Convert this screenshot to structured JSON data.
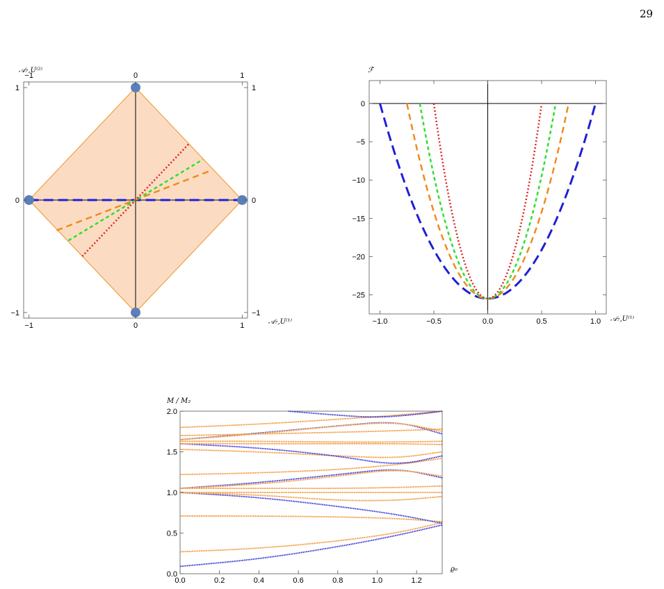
{
  "page": {
    "number": "29"
  },
  "colors": {
    "blue": "#1f1fd6",
    "orange": "#f08a1e",
    "green": "#2ce02c",
    "red": "#e02020",
    "region_fill": "#fbdcc2",
    "region_stroke": "#f0922c",
    "marker": "#5b7fb8"
  },
  "chart_data": [
    {
      "type": "scatter",
      "id": "top-left",
      "title": "",
      "xlabel": "𝒜₇,U⁽¹⁾",
      "ylabel": "𝒜₇,U⁽²⁾",
      "xlim": [
        -1.05,
        1.05
      ],
      "ylim": [
        -1.05,
        1.05
      ],
      "x_ticks": [
        "-1",
        "0",
        "1"
      ],
      "y_ticks": [
        "-1",
        "0",
        "1"
      ],
      "x_tick_values": [
        -1,
        0,
        1
      ],
      "y_tick_values": [
        -1,
        0,
        1
      ],
      "region": {
        "vertices": [
          [
            0,
            1
          ],
          [
            1,
            0
          ],
          [
            0,
            -1
          ],
          [
            -1,
            0
          ]
        ]
      },
      "markers": [
        [
          0,
          1
        ],
        [
          1,
          0
        ],
        [
          0,
          -1
        ],
        [
          -1,
          0
        ]
      ],
      "series": [
        {
          "color": "blue",
          "dash": "long",
          "points": [
            [
              -1,
              0
            ],
            [
              1,
              0
            ]
          ]
        },
        {
          "color": "orange",
          "dash": "medium",
          "points": [
            [
              -0.74,
              -0.27
            ],
            [
              0.7,
              0.26
            ]
          ]
        },
        {
          "color": "green",
          "dash": "short",
          "points": [
            [
              -0.63,
              -0.36
            ],
            [
              0.63,
              0.36
            ]
          ]
        },
        {
          "color": "red",
          "dash": "dotted",
          "points": [
            [
              -0.5,
              -0.5
            ],
            [
              0.5,
              0.5
            ]
          ]
        }
      ]
    },
    {
      "type": "line",
      "id": "top-right",
      "title": "",
      "xlabel": "𝒜₇,U⁽¹⁾",
      "ylabel": "ℱ̂",
      "xlim": [
        -1.1,
        1.1
      ],
      "ylim": [
        -27.5,
        3
      ],
      "x_ticks": [
        "-1.0",
        "-0.5",
        "0.0",
        "0.5",
        "1.0"
      ],
      "x_tick_values": [
        -1,
        -0.5,
        0,
        0.5,
        1
      ],
      "y_ticks": [
        "0",
        "-5",
        "-10",
        "-15",
        "-20",
        "-25"
      ],
      "y_tick_values": [
        0,
        -5,
        -10,
        -15,
        -20,
        -25
      ],
      "min_value": -25.5,
      "series": [
        {
          "color": "blue",
          "dash": "long",
          "half_width": 1.0
        },
        {
          "color": "orange",
          "dash": "medium",
          "half_width": 0.75
        },
        {
          "color": "green",
          "dash": "short",
          "half_width": 0.63
        },
        {
          "color": "red",
          "dash": "dotted",
          "half_width": 0.5
        }
      ]
    },
    {
      "type": "line",
      "id": "bottom",
      "title": "",
      "xlabel": "ϱ₀",
      "ylabel": "M / M₂",
      "xlim": [
        0,
        1.33
      ],
      "ylim": [
        0,
        2
      ],
      "x_ticks": [
        "0.0",
        "0.2",
        "0.4",
        "0.6",
        "0.8",
        "1.0",
        "1.2"
      ],
      "x_tick_values": [
        0,
        0.2,
        0.4,
        0.6,
        0.8,
        1.0,
        1.2
      ],
      "y_ticks": [
        "0.0",
        "0.5",
        "1.0",
        "1.5",
        "2.0"
      ],
      "y_tick_values": [
        0,
        0.5,
        1.0,
        1.5,
        2.0
      ],
      "series": [
        {
          "color": "blue",
          "points": [
            [
              0,
              0.09
            ],
            [
              0.4,
              0.18
            ],
            [
              0.8,
              0.33
            ],
            [
              1.1,
              0.47
            ],
            [
              1.33,
              0.6
            ]
          ]
        },
        {
          "color": "orange",
          "points": [
            [
              0,
              0.27
            ],
            [
              0.4,
              0.31
            ],
            [
              0.8,
              0.4
            ],
            [
              1.1,
              0.5
            ],
            [
              1.33,
              0.63
            ]
          ]
        },
        {
          "color": "orange",
          "points": [
            [
              0,
              0.71
            ],
            [
              0.4,
              0.71
            ],
            [
              0.8,
              0.7
            ],
            [
              1.1,
              0.68
            ],
            [
              1.33,
              0.64
            ]
          ]
        },
        {
          "color": "blue",
          "points": [
            [
              0,
              1.0
            ],
            [
              0.4,
              0.94
            ],
            [
              0.8,
              0.83
            ],
            [
              1.1,
              0.73
            ],
            [
              1.33,
              0.62
            ]
          ]
        },
        {
          "color": "orange",
          "points": [
            [
              0,
              1.0
            ],
            [
              0.4,
              0.97
            ],
            [
              0.8,
              0.9
            ],
            [
              1.1,
              0.9
            ],
            [
              1.33,
              0.95
            ]
          ]
        },
        {
          "color": "orange",
          "points": [
            [
              0,
              1.0
            ],
            [
              0.4,
              1.0
            ],
            [
              0.8,
              1.0
            ],
            [
              1.1,
              1.0
            ],
            [
              1.33,
              1.0
            ]
          ]
        },
        {
          "color": "blue",
          "points": [
            [
              0,
              1.05
            ],
            [
              0.4,
              1.12
            ],
            [
              0.8,
              1.22
            ],
            [
              1.1,
              1.3
            ],
            [
              1.33,
              1.18
            ]
          ]
        },
        {
          "color": "orange",
          "points": [
            [
              0,
              1.05
            ],
            [
              0.4,
              1.1
            ],
            [
              0.8,
              1.2
            ],
            [
              1.1,
              1.29
            ],
            [
              1.33,
              1.2
            ]
          ]
        },
        {
          "color": "orange",
          "points": [
            [
              0,
              1.05
            ],
            [
              0.4,
              1.05
            ],
            [
              0.8,
              1.05
            ],
            [
              1.1,
              1.06
            ],
            [
              1.33,
              1.08
            ]
          ]
        },
        {
          "color": "orange",
          "points": [
            [
              0,
              1.22
            ],
            [
              0.4,
              1.24
            ],
            [
              0.8,
              1.28
            ],
            [
              1.1,
              1.34
            ],
            [
              1.33,
              1.42
            ]
          ]
        },
        {
          "color": "orange",
          "points": [
            [
              0,
              1.53
            ],
            [
              0.4,
              1.5
            ],
            [
              0.8,
              1.45
            ],
            [
              1.1,
              1.42
            ],
            [
              1.33,
              1.5
            ]
          ]
        },
        {
          "color": "blue",
          "points": [
            [
              0,
              1.6
            ],
            [
              0.4,
              1.55
            ],
            [
              0.8,
              1.45
            ],
            [
              1.1,
              1.33
            ],
            [
              1.33,
              1.45
            ]
          ]
        },
        {
          "color": "orange",
          "points": [
            [
              0,
              1.6
            ],
            [
              0.4,
              1.6
            ],
            [
              0.8,
              1.6
            ],
            [
              1.1,
              1.6
            ],
            [
              1.33,
              1.59
            ]
          ]
        },
        {
          "color": "orange",
          "points": [
            [
              0,
              1.63
            ],
            [
              0.4,
              1.63
            ],
            [
              0.8,
              1.62
            ],
            [
              1.1,
              1.62
            ],
            [
              1.33,
              1.63
            ]
          ]
        },
        {
          "color": "blue",
          "points": [
            [
              0,
              1.65
            ],
            [
              0.4,
              1.73
            ],
            [
              0.8,
              1.82
            ],
            [
              1.1,
              1.88
            ],
            [
              1.33,
              1.72
            ]
          ]
        },
        {
          "color": "orange",
          "points": [
            [
              0,
              1.65
            ],
            [
              0.4,
              1.72
            ],
            [
              0.8,
              1.82
            ],
            [
              1.1,
              1.87
            ],
            [
              1.33,
              1.75
            ]
          ]
        },
        {
          "color": "orange",
          "points": [
            [
              0,
              1.7
            ],
            [
              0.4,
              1.72
            ],
            [
              0.8,
              1.74
            ],
            [
              1.1,
              1.76
            ],
            [
              1.33,
              1.78
            ]
          ]
        },
        {
          "color": "orange",
          "points": [
            [
              0,
              1.8
            ],
            [
              0.4,
              1.84
            ],
            [
              0.8,
              1.9
            ],
            [
              1.1,
              1.95
            ],
            [
              1.33,
              2.0
            ]
          ]
        },
        {
          "color": "blue",
          "points": [
            [
              0.55,
              2.0
            ],
            [
              0.8,
              1.95
            ],
            [
              1.0,
              1.92
            ],
            [
              1.2,
              1.96
            ],
            [
              1.33,
              2.0
            ]
          ]
        }
      ]
    }
  ]
}
